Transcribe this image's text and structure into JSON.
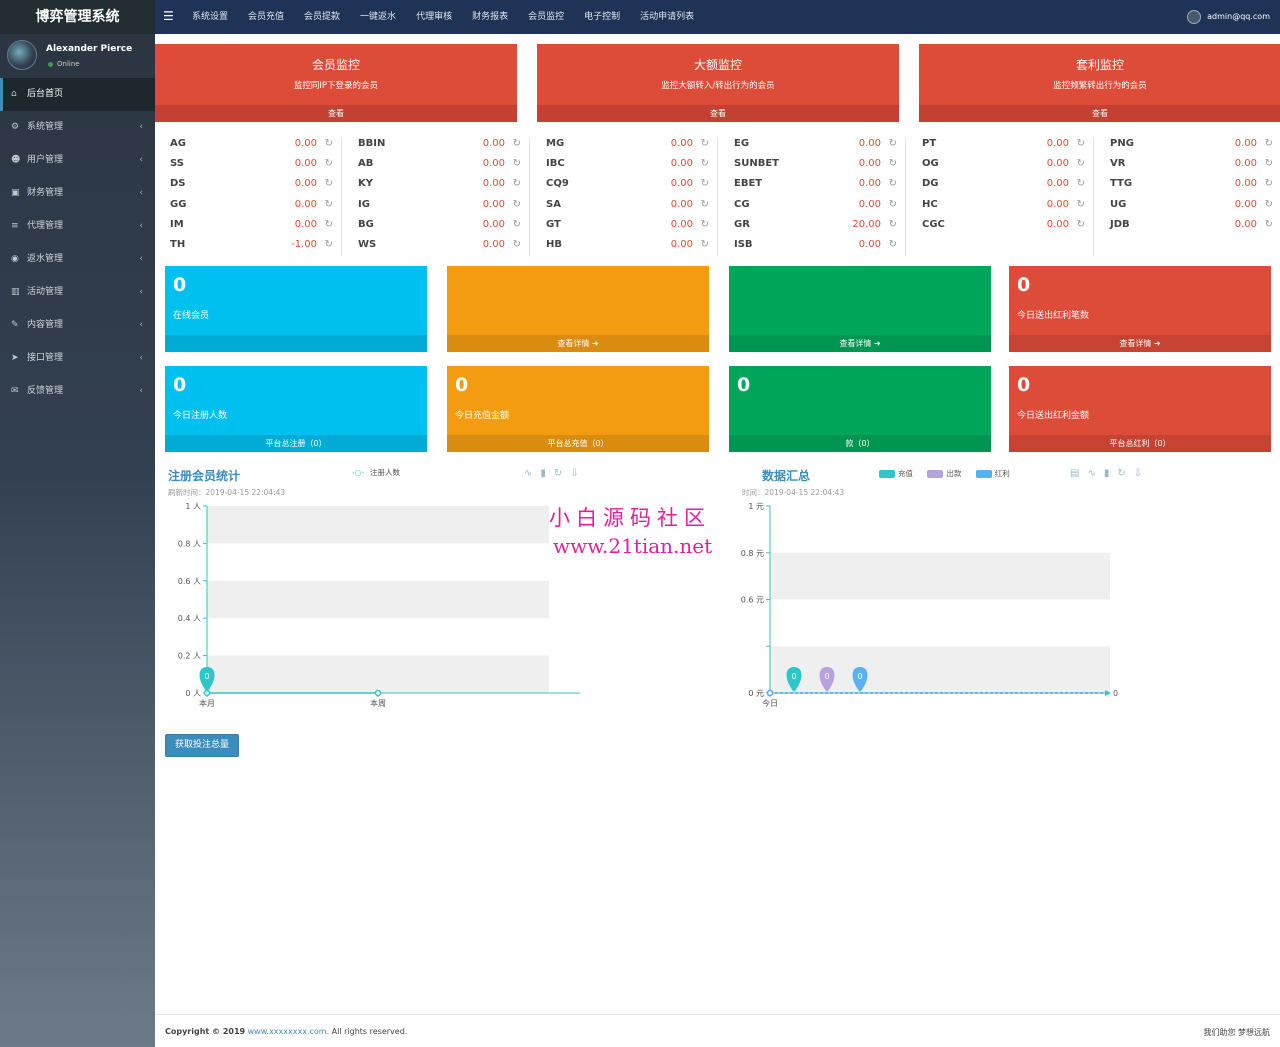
{
  "app": {
    "title": "博弈管理系统"
  },
  "user": {
    "name": "Alexander Pierce",
    "status": "Online"
  },
  "sidebar": {
    "items": [
      {
        "label": "后台首页",
        "icon": "dashboard-icon"
      },
      {
        "label": "系统管理",
        "icon": "gear-icon"
      },
      {
        "label": "用户管理",
        "icon": "users-icon"
      },
      {
        "label": "财务管理",
        "icon": "money-icon"
      },
      {
        "label": "代理管理",
        "icon": "list-icon"
      },
      {
        "label": "返水管理",
        "icon": "eye-icon"
      },
      {
        "label": "活动管理",
        "icon": "book-icon"
      },
      {
        "label": "内容管理",
        "icon": "wrench-icon"
      },
      {
        "label": "接口管理",
        "icon": "send-icon"
      },
      {
        "label": "反馈管理",
        "icon": "comment-icon"
      }
    ]
  },
  "topnav": {
    "items": [
      "系统设置",
      "会员充值",
      "会员提款",
      "一键返水",
      "代理审核",
      "财务报表",
      "会员监控",
      "电子控制",
      "活动申请列表"
    ]
  },
  "account": {
    "email": "admin@qq.com"
  },
  "monitors": [
    {
      "title": "会员监控",
      "subtitle": "监控同IP下登录的会员",
      "action": "查看"
    },
    {
      "title": "大额监控",
      "subtitle": "监控大额转入/转出行为的会员",
      "action": "查看"
    },
    {
      "title": "套利监控",
      "subtitle": "监控频繁转出行为的会员",
      "action": "查看"
    }
  ],
  "games": {
    "columns": [
      [
        {
          "name": "AG",
          "value": "0.00"
        },
        {
          "name": "SS",
          "value": "0.00"
        },
        {
          "name": "DS",
          "value": "0.00"
        },
        {
          "name": "GG",
          "value": "0.00"
        },
        {
          "name": "IM",
          "value": "0.00"
        },
        {
          "name": "TH",
          "value": "-1.00"
        }
      ],
      [
        {
          "name": "BBIN",
          "value": "0.00"
        },
        {
          "name": "AB",
          "value": "0.00"
        },
        {
          "name": "KY",
          "value": "0.00"
        },
        {
          "name": "IG",
          "value": "0.00"
        },
        {
          "name": "BG",
          "value": "0.00"
        },
        {
          "name": "WS",
          "value": "0.00"
        }
      ],
      [
        {
          "name": "MG",
          "value": "0.00"
        },
        {
          "name": "IBC",
          "value": "0.00"
        },
        {
          "name": "CQ9",
          "value": "0.00"
        },
        {
          "name": "SA",
          "value": "0.00"
        },
        {
          "name": "GT",
          "value": "0.00"
        },
        {
          "name": "HB",
          "value": "0.00"
        }
      ],
      [
        {
          "name": "EG",
          "value": "0.00"
        },
        {
          "name": "SUNBET",
          "value": "0.00"
        },
        {
          "name": "EBET",
          "value": "0.00"
        },
        {
          "name": "CG",
          "value": "0.00"
        },
        {
          "name": "GR",
          "value": "20.00"
        },
        {
          "name": "ISB",
          "value": "0.00"
        }
      ],
      [
        {
          "name": "PT",
          "value": "0.00"
        },
        {
          "name": "OG",
          "value": "0.00"
        },
        {
          "name": "DG",
          "value": "0.00"
        },
        {
          "name": "HC",
          "value": "0.00"
        },
        {
          "name": "CGC",
          "value": "0.00"
        }
      ],
      [
        {
          "name": "PNG",
          "value": "0.00"
        },
        {
          "name": "VR",
          "value": "0.00"
        },
        {
          "name": "TTG",
          "value": "0.00"
        },
        {
          "name": "UG",
          "value": "0.00"
        },
        {
          "name": "JDB",
          "value": "0.00"
        }
      ]
    ]
  },
  "stats_row1": [
    {
      "number": "0",
      "label": "在线会员",
      "footer": ""
    },
    {
      "number": "",
      "label": "",
      "footer": "查看详情"
    },
    {
      "number": "",
      "label": "",
      "footer": "查看详情"
    },
    {
      "number": "0",
      "label": "今日送出红利笔数",
      "footer": "查看详情"
    }
  ],
  "stats_row2": [
    {
      "number": "0",
      "label": "今日注册人数",
      "footer": "平台总注册（0）"
    },
    {
      "number": "0",
      "label": "今日充值金额",
      "footer": "平台总充值（0）"
    },
    {
      "number": "0",
      "label": "",
      "footer": "款（0）"
    },
    {
      "number": "0",
      "label": "今日送出红利金额",
      "footer": "平台总红利（0）"
    }
  ],
  "chart_left_header": {
    "title": "注册会员统计",
    "refresh": "刷新时间：2019-04-15 22:04:43",
    "legend": "注册人数"
  },
  "chart_right_header": {
    "title": "数据汇总",
    "refresh": "时间：2019-04-15 22:04:43",
    "legend": [
      "充值",
      "出款",
      "红利"
    ]
  },
  "chart_data": [
    {
      "type": "line",
      "categories": [
        "本月",
        "本周"
      ],
      "series": [
        {
          "name": "注册人数",
          "values": [
            0,
            0
          ]
        }
      ],
      "ylim": [
        0,
        1
      ],
      "yticks": [
        "0 人",
        "0.2 人",
        "0.4 人",
        "0.6 人",
        "0.8 人",
        "1 人"
      ],
      "markers": [
        "0"
      ],
      "colors": [
        "#2ec7c9"
      ]
    },
    {
      "type": "line",
      "categories": [
        "今日"
      ],
      "series": [
        {
          "name": "充值",
          "values": [
            0
          ]
        },
        {
          "name": "出款",
          "values": [
            0
          ]
        },
        {
          "name": "红利",
          "values": [
            0
          ]
        }
      ],
      "ylim": [
        0,
        1
      ],
      "yticks": [
        "0 元",
        "",
        "0.6 元",
        "0.8 元",
        "1 元"
      ],
      "markers": [
        "0",
        "0",
        "0"
      ],
      "end_label": "0",
      "colors": [
        "#2ec7c9",
        "#b6a2de",
        "#5ab1ef"
      ]
    }
  ],
  "button": {
    "label": "获取投注总量"
  },
  "footer": {
    "copyright": "Copyright © 2019",
    "site": "www.xxxxxxxx.com",
    "rights": ". All rights reserved.",
    "slogan": "我们助您 梦想远航"
  },
  "watermark": {
    "line1": "小白源码社区",
    "line2": "www.21tian.net"
  }
}
